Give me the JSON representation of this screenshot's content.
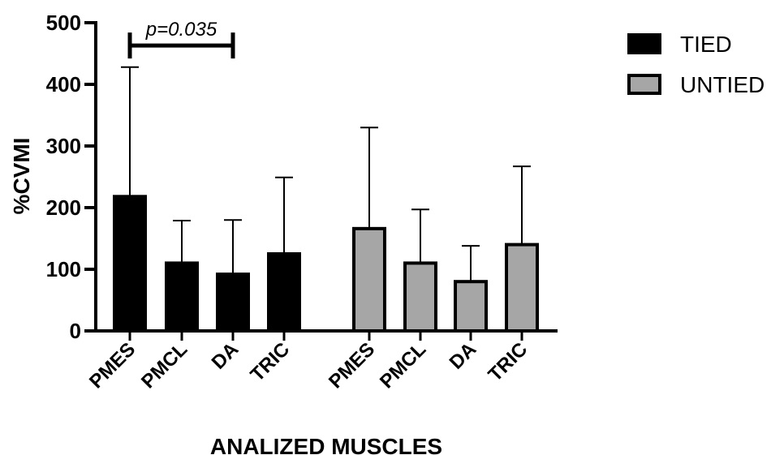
{
  "chart_data": {
    "type": "bar",
    "title": "",
    "xlabel": "ANALIZED MUSCLES",
    "ylabel": "%CVMI",
    "ylim": [
      0,
      500
    ],
    "yticks": [
      0,
      100,
      200,
      300,
      400,
      500
    ],
    "grid": false,
    "legend_position": "top-right",
    "series": [
      {
        "name": "TIED",
        "color": "#000000",
        "categories": [
          "PMES",
          "PMCL",
          "DA",
          "TRIC"
        ],
        "values": [
          218,
          110,
          92,
          125
        ],
        "error_upper": [
          428,
          179,
          180,
          249
        ]
      },
      {
        "name": "UNTIED",
        "color": "#a6a6a6",
        "categories": [
          "PMES",
          "PMCL",
          "DA",
          "TRIC"
        ],
        "values": [
          166,
          110,
          80,
          140
        ],
        "error_upper": [
          330,
          197,
          138,
          267
        ]
      }
    ],
    "annotations": [
      {
        "text": "p=0.035",
        "from": [
          0,
          0
        ],
        "to": [
          0,
          2
        ],
        "y": 463
      }
    ]
  }
}
